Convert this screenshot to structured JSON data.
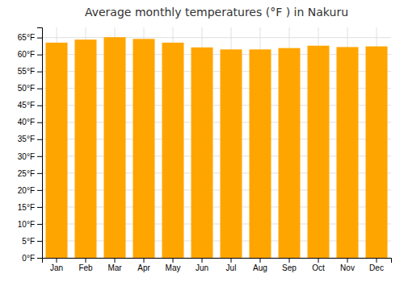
{
  "chart_data": {
    "type": "bar",
    "title": "Average monthly temperatures (°F ) in Nakuru",
    "categories": [
      "Jan",
      "Feb",
      "Mar",
      "Apr",
      "May",
      "Jun",
      "Jul",
      "Aug",
      "Sep",
      "Oct",
      "Nov",
      "Dec"
    ],
    "values": [
      63.5,
      64.4,
      65.1,
      64.6,
      63.5,
      62.1,
      61.5,
      61.5,
      61.9,
      62.6,
      62.2,
      62.4
    ],
    "color": "#FFA500",
    "ylim": [
      0,
      68
    ],
    "yticks": [
      {
        "value": 0,
        "label": "0°F"
      },
      {
        "value": 5,
        "label": "5°F"
      },
      {
        "value": 10,
        "label": "10°F"
      },
      {
        "value": 15,
        "label": "15°F"
      },
      {
        "value": 20,
        "label": "20°F"
      },
      {
        "value": 25,
        "label": "25°F"
      },
      {
        "value": 30,
        "label": "30°F"
      },
      {
        "value": 35,
        "label": "35°F"
      },
      {
        "value": 40,
        "label": "40°F"
      },
      {
        "value": 45,
        "label": "45°F"
      },
      {
        "value": 50,
        "label": "50°F"
      },
      {
        "value": 55,
        "label": "55°F"
      },
      {
        "value": 60,
        "label": "60°F"
      },
      {
        "value": 65,
        "label": "65°F"
      }
    ],
    "grid": true
  }
}
